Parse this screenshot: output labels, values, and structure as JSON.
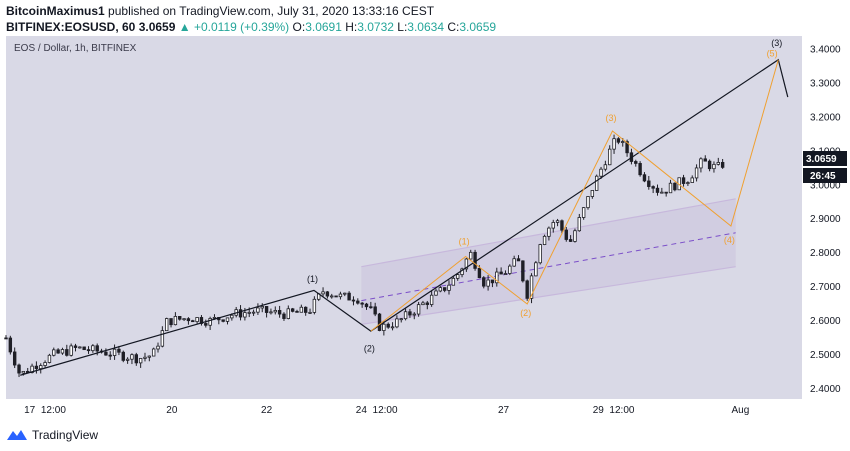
{
  "header": {
    "author": "BitcoinMaximus1",
    "published_text": "published on TradingView.com, July 31, 2020 13:33:16 CEST",
    "symbol": "BITFINEX:EOSUSD, 60",
    "last": "3.0659",
    "change": "+0.0119 (+0.39%)",
    "o_label": "O:",
    "o": "3.0691",
    "h_label": "H:",
    "h": "3.0732",
    "l_label": "L:",
    "l": "3.0634",
    "c_label": "C:",
    "c": "3.0659"
  },
  "chart_title": "EOS / Dollar, 1h, BITFINEX",
  "price_badge": "3.0659",
  "time_badge": "26:45",
  "footer": {
    "brand": "TradingView"
  },
  "colors": {
    "bg": "#d9d9e6",
    "candle": "#1f1f26",
    "wave_orange": "#f0a030",
    "channel": "#c7b8dc",
    "badge": "#131722"
  },
  "chart_data": {
    "type": "candlestick",
    "title": "EOS / Dollar, 1h, BITFINEX",
    "ylim": [
      2.37,
      3.44
    ],
    "xlim": [
      "Jul 16 12:00",
      "Aug 1 12:00"
    ],
    "y_ticks": [
      "3.4000",
      "3.3000",
      "3.2000",
      "3.1000",
      "3.0000",
      "2.9000",
      "2.8000",
      "2.7000",
      "2.6000",
      "2.5000",
      "2.4000"
    ],
    "x_ticks": [
      {
        "t": 17,
        "label": "17"
      },
      {
        "t": 17.5,
        "label": "12:00"
      },
      {
        "t": 20,
        "label": "20"
      },
      {
        "t": 22,
        "label": "22"
      },
      {
        "t": 24,
        "label": "24"
      },
      {
        "t": 24.5,
        "label": "12:00"
      },
      {
        "t": 27,
        "label": "27"
      },
      {
        "t": 29,
        "label": "29"
      },
      {
        "t": 29.5,
        "label": "12:00"
      },
      {
        "t": 32,
        "label": "Aug"
      }
    ],
    "price_path": [
      [
        16.5,
        2.55
      ],
      [
        16.8,
        2.44
      ],
      [
        17.1,
        2.47
      ],
      [
        17.5,
        2.5
      ],
      [
        18.0,
        2.52
      ],
      [
        18.5,
        2.51
      ],
      [
        18.9,
        2.5
      ],
      [
        19.3,
        2.49
      ],
      [
        19.6,
        2.5
      ],
      [
        19.9,
        2.6
      ],
      [
        20.4,
        2.61
      ],
      [
        20.8,
        2.6
      ],
      [
        21.3,
        2.62
      ],
      [
        21.8,
        2.63
      ],
      [
        22.4,
        2.62
      ],
      [
        22.9,
        2.63
      ],
      [
        23.2,
        2.69
      ],
      [
        23.6,
        2.67
      ],
      [
        23.9,
        2.67
      ],
      [
        24.2,
        2.63
      ],
      [
        24.4,
        2.58
      ],
      [
        24.8,
        2.6
      ],
      [
        25.2,
        2.64
      ],
      [
        25.7,
        2.69
      ],
      [
        26.0,
        2.73
      ],
      [
        26.3,
        2.8
      ],
      [
        26.6,
        2.71
      ],
      [
        27.0,
        2.74
      ],
      [
        27.3,
        2.78
      ],
      [
        27.5,
        2.68
      ],
      [
        27.8,
        2.85
      ],
      [
        28.1,
        2.9
      ],
      [
        28.4,
        2.83
      ],
      [
        28.7,
        2.93
      ],
      [
        28.9,
        3.0
      ],
      [
        29.2,
        3.09
      ],
      [
        29.4,
        3.14
      ],
      [
        29.7,
        3.08
      ],
      [
        30.0,
        3.02
      ],
      [
        30.3,
        2.98
      ],
      [
        30.6,
        3.0
      ],
      [
        30.9,
        3.02
      ],
      [
        31.2,
        3.07
      ],
      [
        31.5,
        3.05
      ],
      [
        31.7,
        3.07
      ]
    ],
    "channel": {
      "lower": [
        [
          24.0,
          2.59
        ],
        [
          31.9,
          2.76
        ]
      ],
      "upper": [
        [
          24.0,
          2.76
        ],
        [
          31.9,
          2.96
        ]
      ],
      "mid": [
        [
          24.0,
          2.66
        ],
        [
          31.9,
          2.86
        ]
      ]
    },
    "black_wave": [
      [
        16.8,
        2.44
      ],
      [
        23.0,
        2.69
      ],
      [
        24.2,
        2.57
      ],
      [
        32.8,
        3.37
      ],
      [
        33.0,
        3.26
      ]
    ],
    "orange_wave": [
      [
        24.2,
        2.57
      ],
      [
        26.2,
        2.79
      ],
      [
        27.5,
        2.65
      ],
      [
        29.3,
        3.16
      ],
      [
        31.8,
        2.88
      ],
      [
        32.8,
        3.37
      ]
    ],
    "labels": [
      {
        "text": "(1)",
        "t": 23.0,
        "y": 2.715,
        "color": "black"
      },
      {
        "text": "(2)",
        "t": 24.2,
        "y": 2.51,
        "color": "black"
      },
      {
        "text": "(3)",
        "t": 32.8,
        "y": 3.41,
        "color": "black"
      },
      {
        "text": "(1)",
        "t": 26.2,
        "y": 2.825,
        "color": "orange"
      },
      {
        "text": "(2)",
        "t": 27.5,
        "y": 2.615,
        "color": "orange"
      },
      {
        "text": "(3)",
        "t": 29.3,
        "y": 3.19,
        "color": "orange"
      },
      {
        "text": "(4)",
        "t": 31.8,
        "y": 2.83,
        "color": "orange"
      },
      {
        "text": "(5)",
        "t": 32.7,
        "y": 3.38,
        "color": "orange"
      }
    ]
  }
}
